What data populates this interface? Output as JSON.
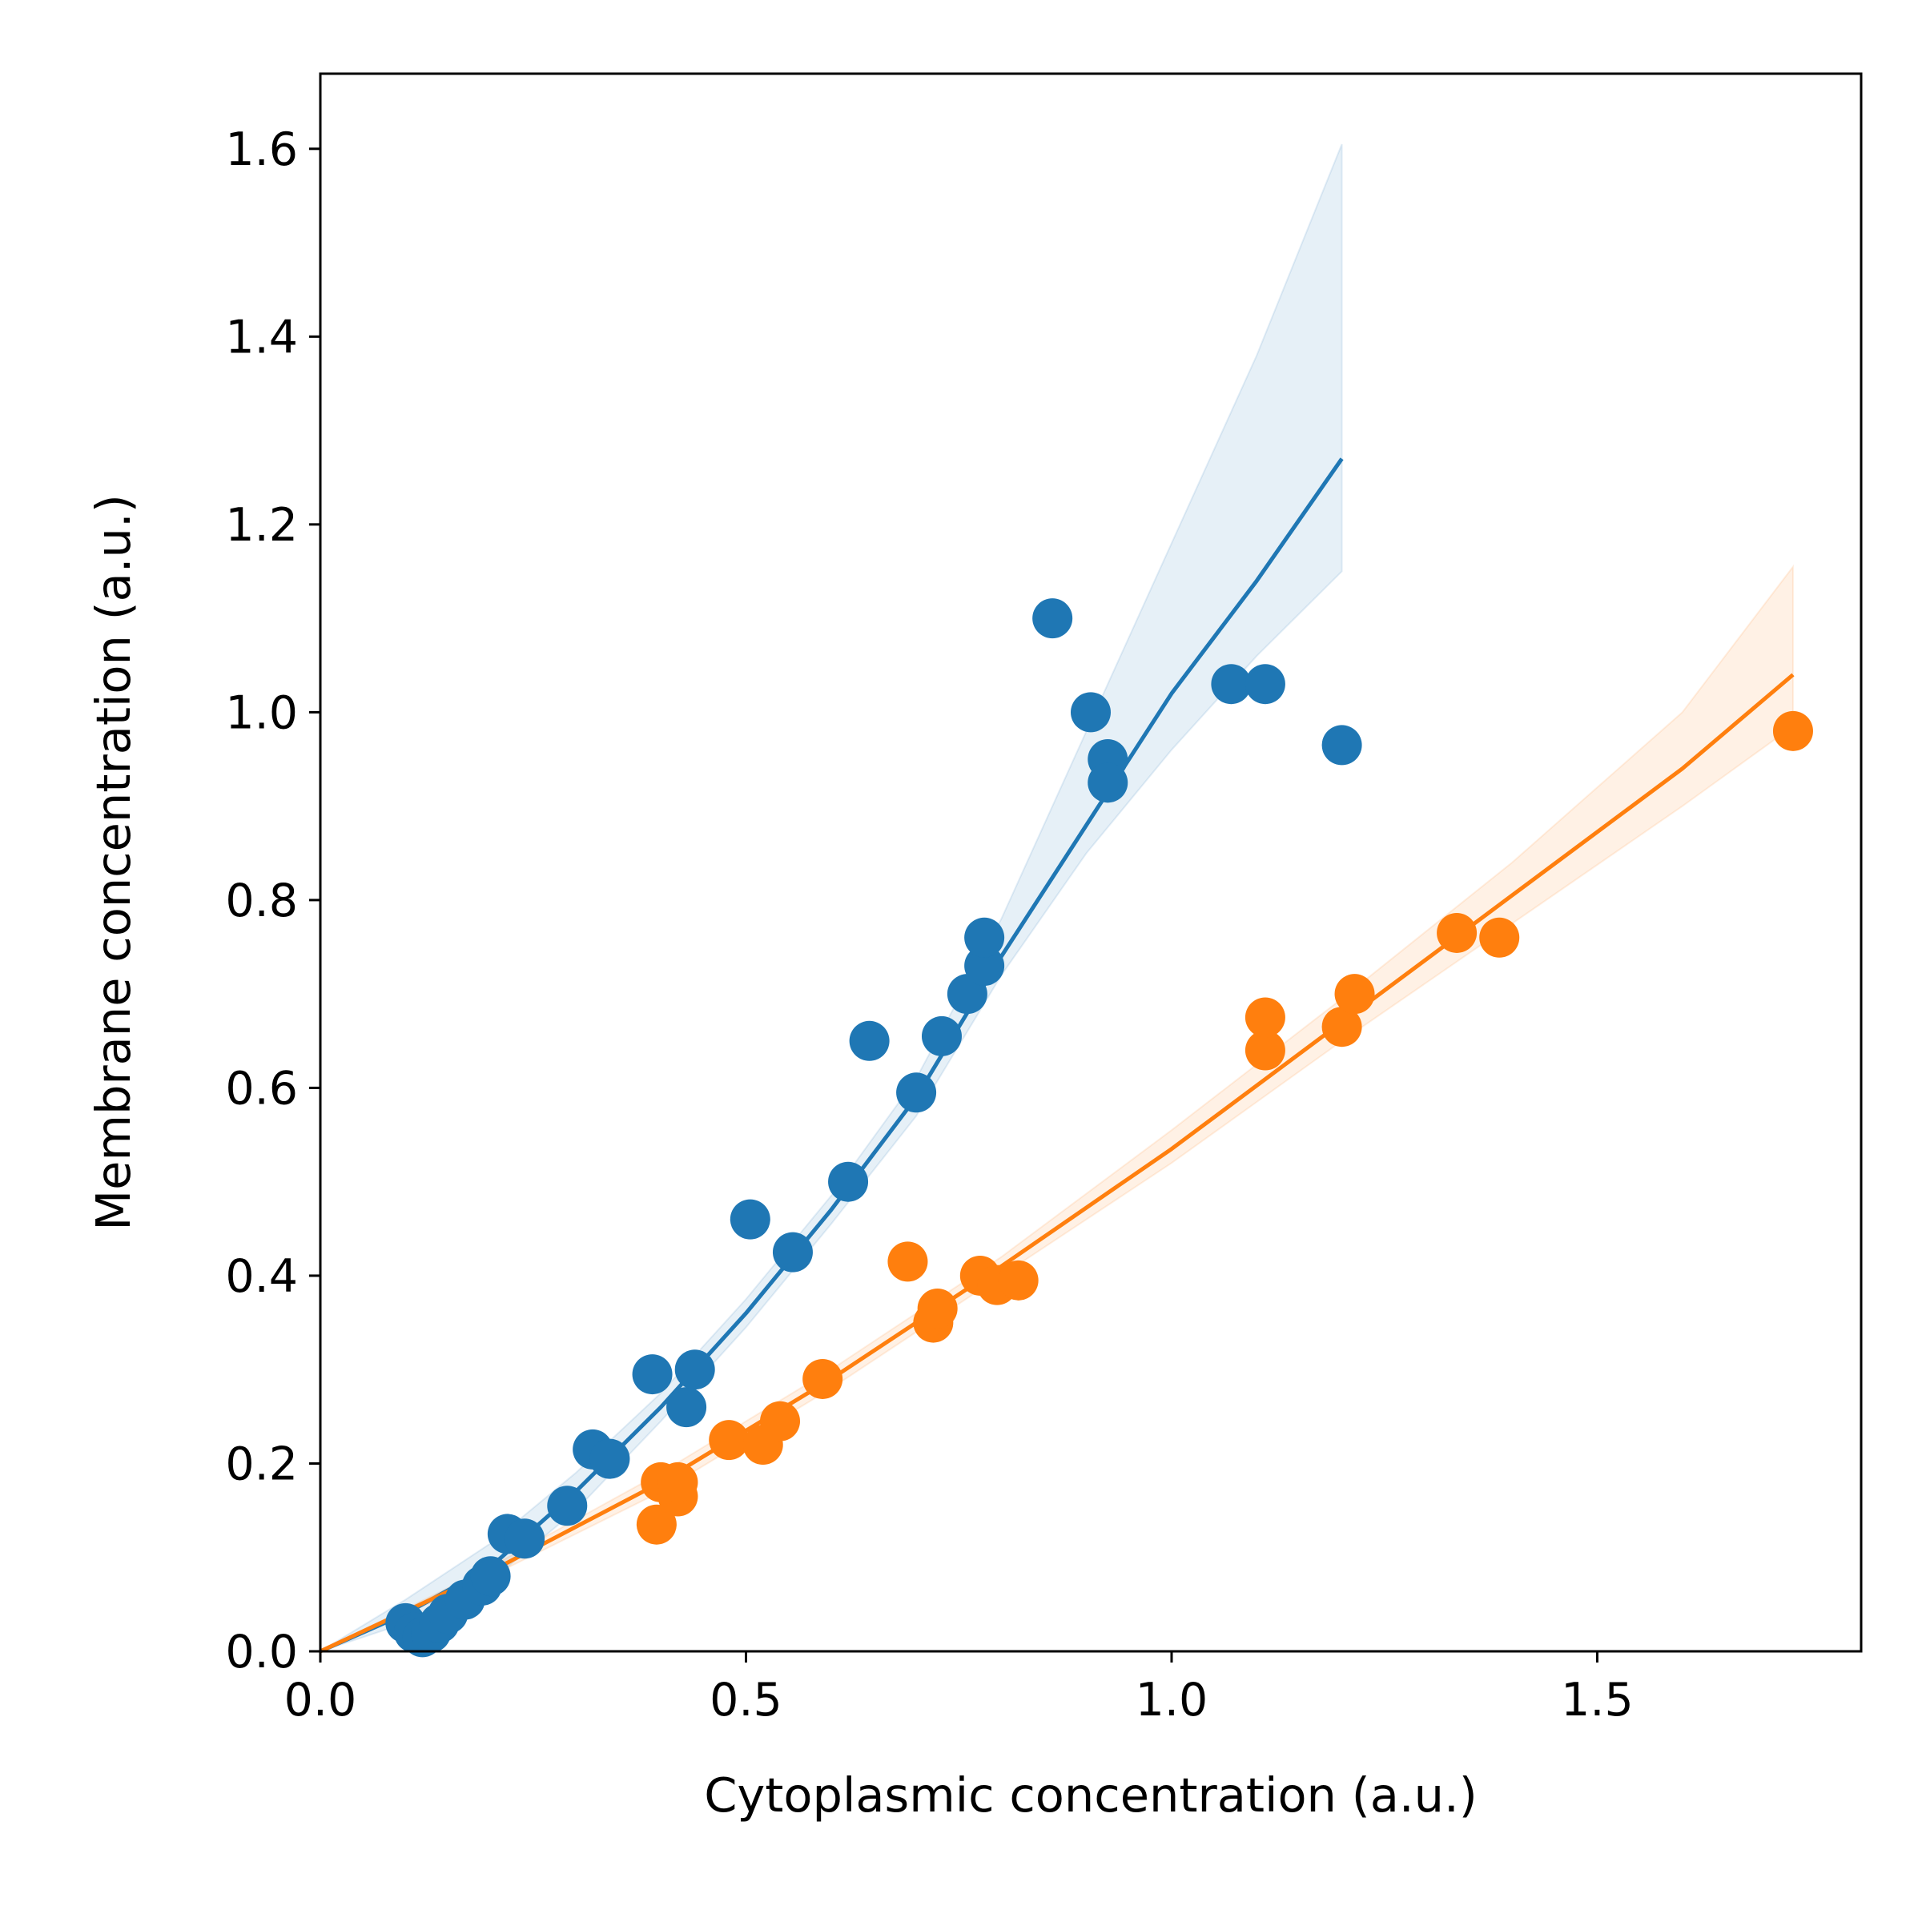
{
  "chart_data": {
    "type": "scatter",
    "title": "",
    "xlabel": "Cytoplasmic concentration (a.u.)",
    "ylabel": "Membrane concentration (a.u.)",
    "xlim": [
      0.0,
      1.81
    ],
    "ylim": [
      0.0,
      1.68
    ],
    "xticks": [
      0.0,
      0.5,
      1.0,
      1.5
    ],
    "xtick_labels": [
      "0.0",
      "0.5",
      "1.0",
      "1.5"
    ],
    "yticks": [
      0.0,
      0.2,
      0.4,
      0.6,
      0.8,
      1.0,
      1.2,
      1.4,
      1.6
    ],
    "ytick_labels": [
      "0.0",
      "0.2",
      "0.4",
      "0.6",
      "0.8",
      "1.0",
      "1.2",
      "1.4",
      "1.6"
    ],
    "grid": false,
    "legend": "none",
    "series": [
      {
        "color": "#1f77b4",
        "band_color": "#1f77b4",
        "points": [
          [
            0.1,
            0.03
          ],
          [
            0.11,
            0.02
          ],
          [
            0.12,
            0.015
          ],
          [
            0.13,
            0.02
          ],
          [
            0.14,
            0.03
          ],
          [
            0.15,
            0.04
          ],
          [
            0.17,
            0.055
          ],
          [
            0.19,
            0.07
          ],
          [
            0.2,
            0.08
          ],
          [
            0.22,
            0.125
          ],
          [
            0.24,
            0.12
          ],
          [
            0.29,
            0.155
          ],
          [
            0.32,
            0.215
          ],
          [
            0.34,
            0.205
          ],
          [
            0.39,
            0.295
          ],
          [
            0.43,
            0.26
          ],
          [
            0.44,
            0.3
          ],
          [
            0.505,
            0.46
          ],
          [
            0.555,
            0.425
          ],
          [
            0.62,
            0.5
          ],
          [
            0.645,
            0.65
          ],
          [
            0.7,
            0.595
          ],
          [
            0.73,
            0.655
          ],
          [
            0.76,
            0.7
          ],
          [
            0.78,
            0.73
          ],
          [
            0.78,
            0.76
          ],
          [
            0.86,
            1.1
          ],
          [
            0.905,
            1.0
          ],
          [
            0.925,
            0.95
          ],
          [
            0.925,
            0.925
          ],
          [
            1.07,
            1.03
          ],
          [
            1.11,
            1.03
          ],
          [
            1.2,
            0.965
          ]
        ],
        "fit": [
          [
            0.0,
            0.0
          ],
          [
            0.1,
            0.04
          ],
          [
            0.2,
            0.09
          ],
          [
            0.3,
            0.17
          ],
          [
            0.4,
            0.26
          ],
          [
            0.5,
            0.36
          ],
          [
            0.6,
            0.47
          ],
          [
            0.7,
            0.59
          ],
          [
            0.8,
            0.74
          ],
          [
            0.9,
            0.88
          ],
          [
            1.0,
            1.02
          ],
          [
            1.1,
            1.14
          ],
          [
            1.2,
            1.27
          ]
        ],
        "band_upper": [
          [
            0.0,
            0.0
          ],
          [
            0.1,
            0.055
          ],
          [
            0.2,
            0.115
          ],
          [
            0.3,
            0.19
          ],
          [
            0.4,
            0.275
          ],
          [
            0.5,
            0.375
          ],
          [
            0.6,
            0.485
          ],
          [
            0.7,
            0.61
          ],
          [
            0.8,
            0.78
          ],
          [
            0.9,
            0.98
          ],
          [
            1.0,
            1.18
          ],
          [
            1.1,
            1.38
          ],
          [
            1.2,
            1.605
          ]
        ],
        "band_lower": [
          [
            0.0,
            0.0
          ],
          [
            0.1,
            0.03
          ],
          [
            0.2,
            0.075
          ],
          [
            0.3,
            0.15
          ],
          [
            0.4,
            0.245
          ],
          [
            0.5,
            0.345
          ],
          [
            0.6,
            0.455
          ],
          [
            0.7,
            0.57
          ],
          [
            0.8,
            0.72
          ],
          [
            0.9,
            0.85
          ],
          [
            1.0,
            0.96
          ],
          [
            1.1,
            1.06
          ],
          [
            1.2,
            1.15
          ]
        ]
      },
      {
        "color": "#ff7f0e",
        "band_color": "#ff7f0e",
        "points": [
          [
            0.395,
            0.135
          ],
          [
            0.4,
            0.18
          ],
          [
            0.42,
            0.165
          ],
          [
            0.42,
            0.18
          ],
          [
            0.48,
            0.225
          ],
          [
            0.52,
            0.22
          ],
          [
            0.54,
            0.245
          ],
          [
            0.59,
            0.29
          ],
          [
            0.69,
            0.415
          ],
          [
            0.72,
            0.35
          ],
          [
            0.725,
            0.365
          ],
          [
            0.775,
            0.4
          ],
          [
            0.795,
            0.39
          ],
          [
            0.82,
            0.395
          ],
          [
            1.11,
            0.64
          ],
          [
            1.11,
            0.675
          ],
          [
            1.2,
            0.665
          ],
          [
            1.215,
            0.7
          ],
          [
            1.335,
            0.765
          ],
          [
            1.385,
            0.76
          ],
          [
            1.73,
            0.98
          ]
        ],
        "fit": [
          [
            0.0,
            0.0
          ],
          [
            0.2,
            0.085
          ],
          [
            0.4,
            0.18
          ],
          [
            0.6,
            0.29
          ],
          [
            0.8,
            0.41
          ],
          [
            1.0,
            0.535
          ],
          [
            1.2,
            0.67
          ],
          [
            1.4,
            0.805
          ],
          [
            1.6,
            0.94
          ],
          [
            1.73,
            1.04
          ]
        ],
        "band_upper": [
          [
            0.0,
            0.0
          ],
          [
            0.2,
            0.09
          ],
          [
            0.4,
            0.19
          ],
          [
            0.6,
            0.3
          ],
          [
            0.8,
            0.42
          ],
          [
            1.0,
            0.555
          ],
          [
            1.2,
            0.695
          ],
          [
            1.4,
            0.84
          ],
          [
            1.6,
            1.0
          ],
          [
            1.73,
            1.155
          ]
        ],
        "band_lower": [
          [
            0.0,
            0.0
          ],
          [
            0.2,
            0.08
          ],
          [
            0.4,
            0.17
          ],
          [
            0.6,
            0.28
          ],
          [
            0.8,
            0.4
          ],
          [
            1.0,
            0.52
          ],
          [
            1.2,
            0.65
          ],
          [
            1.4,
            0.775
          ],
          [
            1.6,
            0.9
          ],
          [
            1.73,
            0.985
          ]
        ]
      }
    ]
  }
}
